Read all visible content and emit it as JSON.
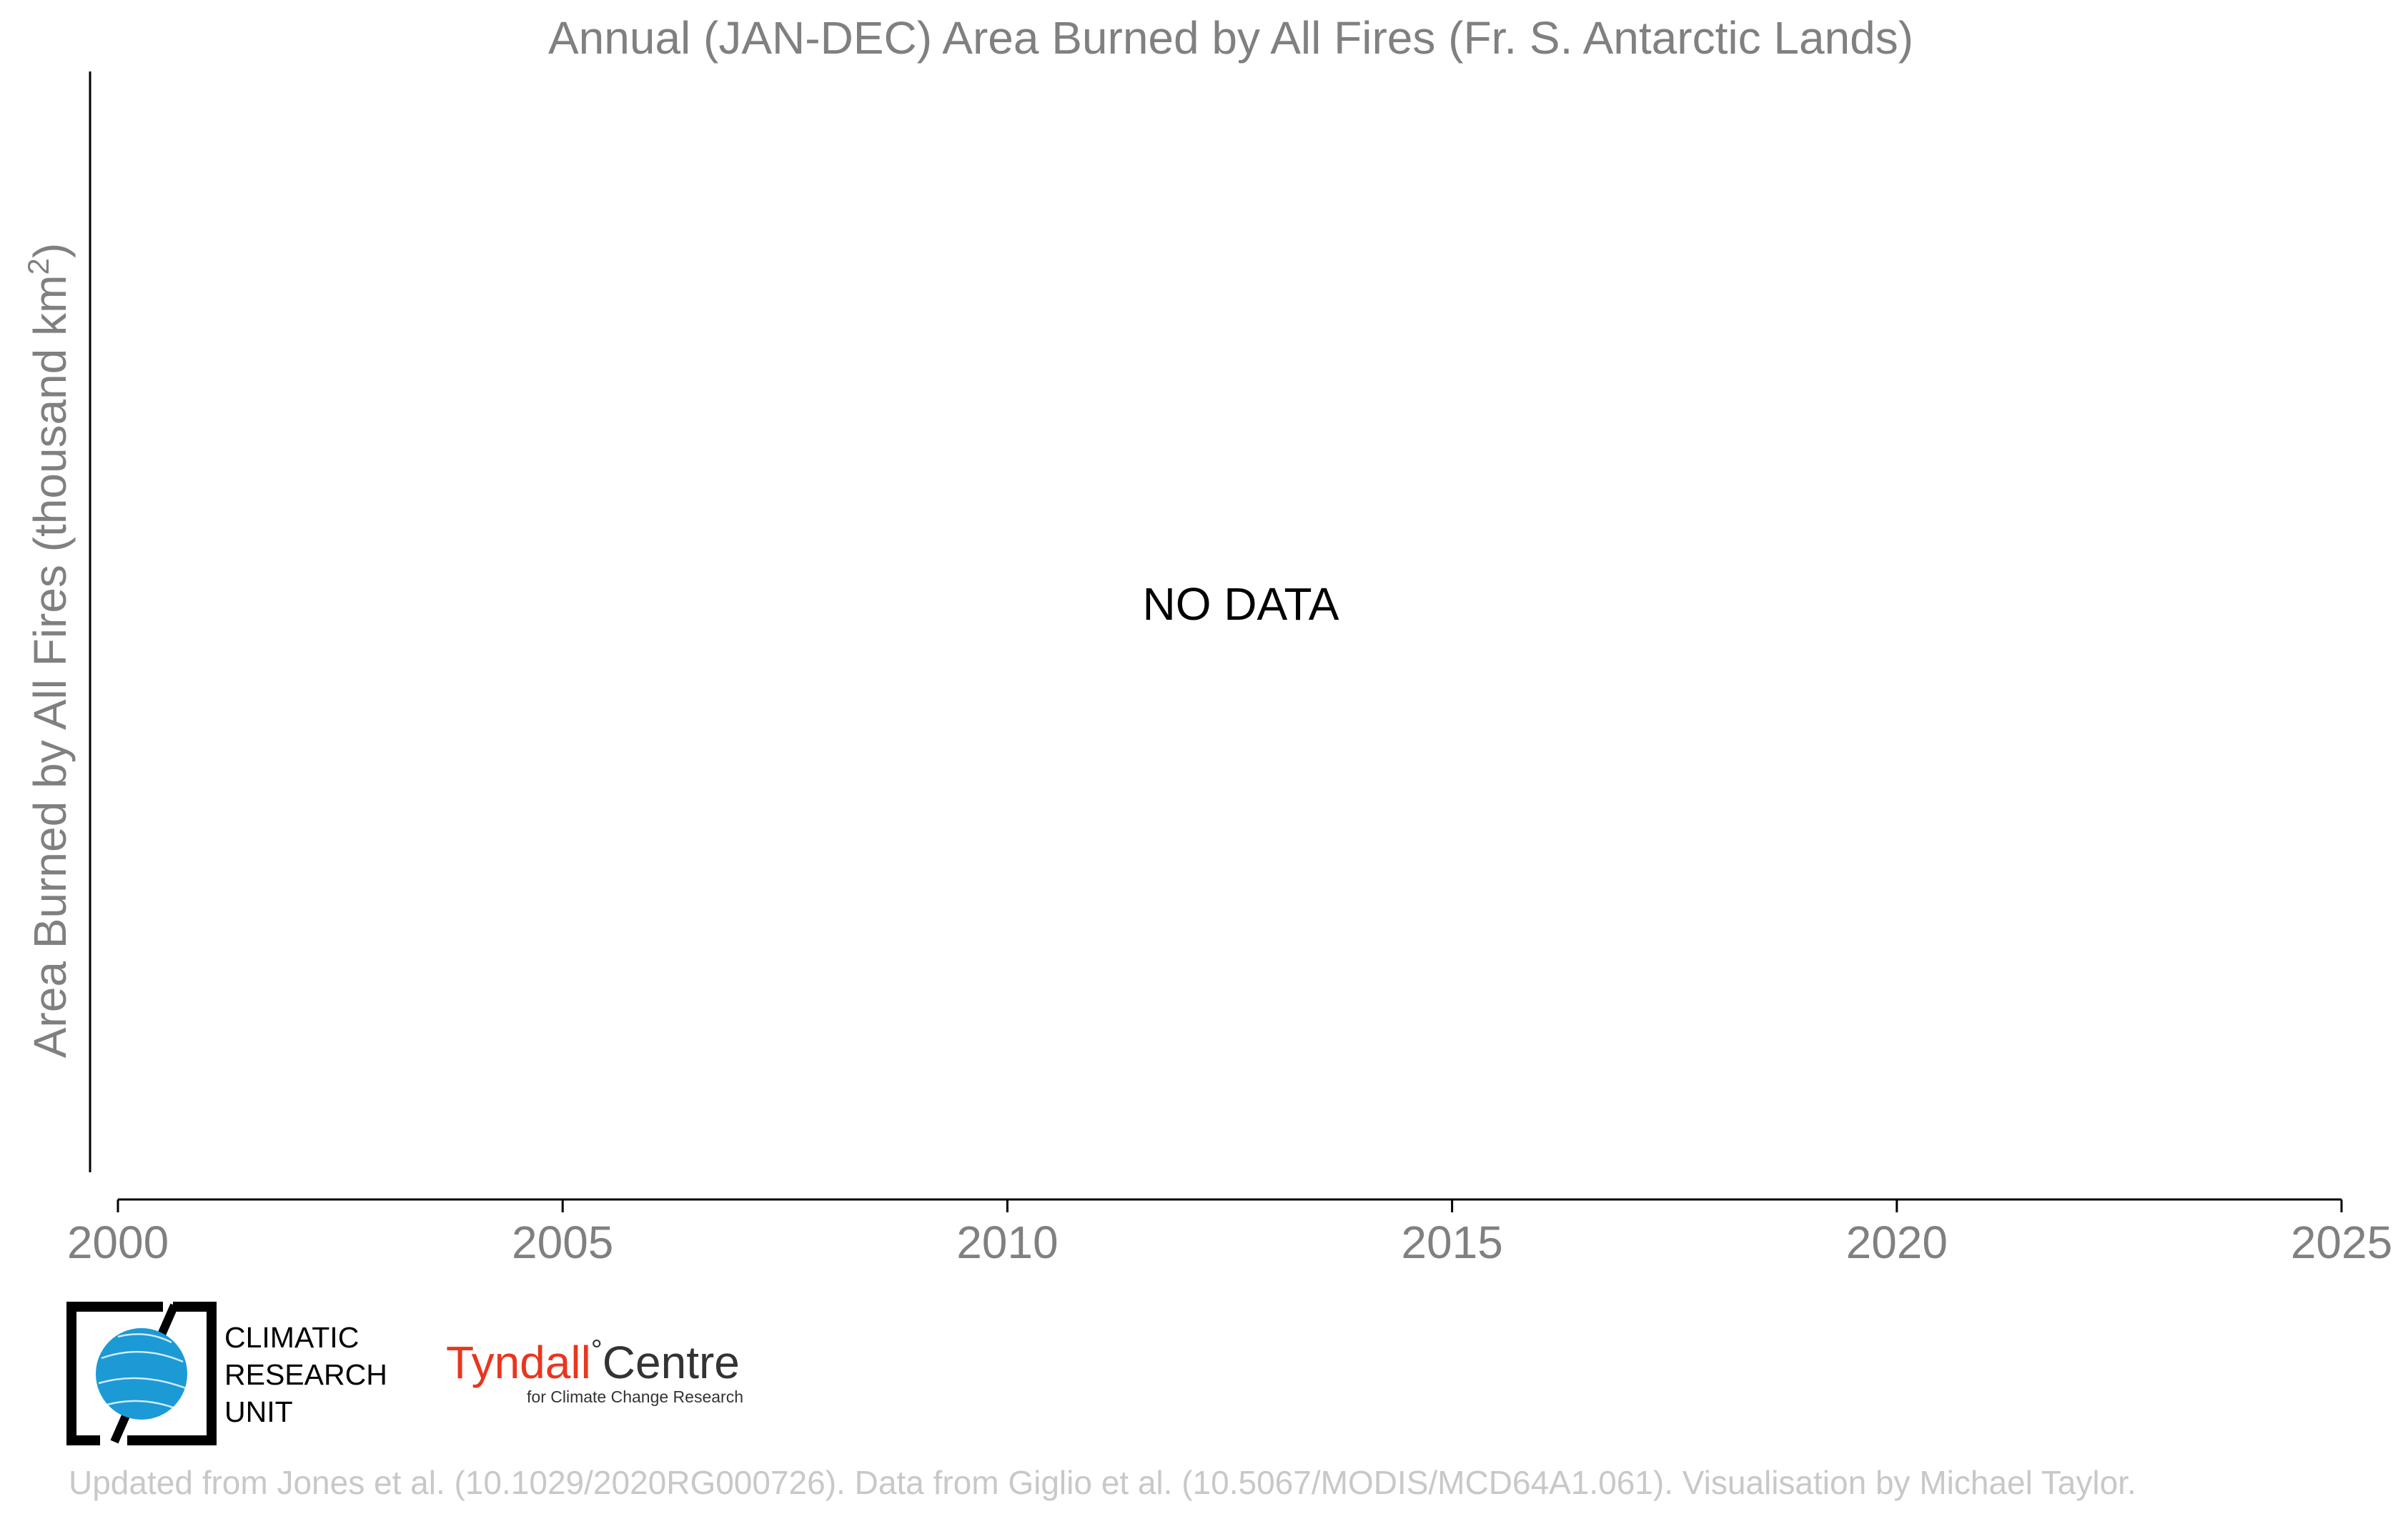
{
  "chart_data": {
    "type": "line",
    "title": "Annual (JAN-DEC) Area Burned by All Fires (Fr. S. Antarctic Lands)",
    "ylabel_main": "Area Burned by All Fires (thousand km",
    "ylabel_sup": "2",
    "ylabel_close": ")",
    "xlabel": "",
    "xlim": [
      2000,
      2025
    ],
    "x_ticks": [
      "2000",
      "2005",
      "2010",
      "2015",
      "2020",
      "2025"
    ],
    "series": [],
    "annotation": "NO DATA",
    "grid": false
  },
  "credit": "Updated from Jones et al. (10.1029/2020RG000726). Data from Giglio et al. (10.5067/MODIS/MCD64A1.061). Visualisation by Michael Taylor.",
  "logos": {
    "cru": {
      "line1": "CLIMATIC",
      "line2": "RESEARCH",
      "line3": "UNIT"
    },
    "tyndall": {
      "name_part1": "Tyndall",
      "degree": "°",
      "name_part2": "Centre",
      "subtitle": "for Climate Change Research"
    }
  },
  "colors": {
    "text_gray": "#808080",
    "axis": "#000000",
    "credit": "#c8c8c8",
    "cru_blue": "#1b9ad6",
    "tyndall_red": "#e8361e"
  }
}
